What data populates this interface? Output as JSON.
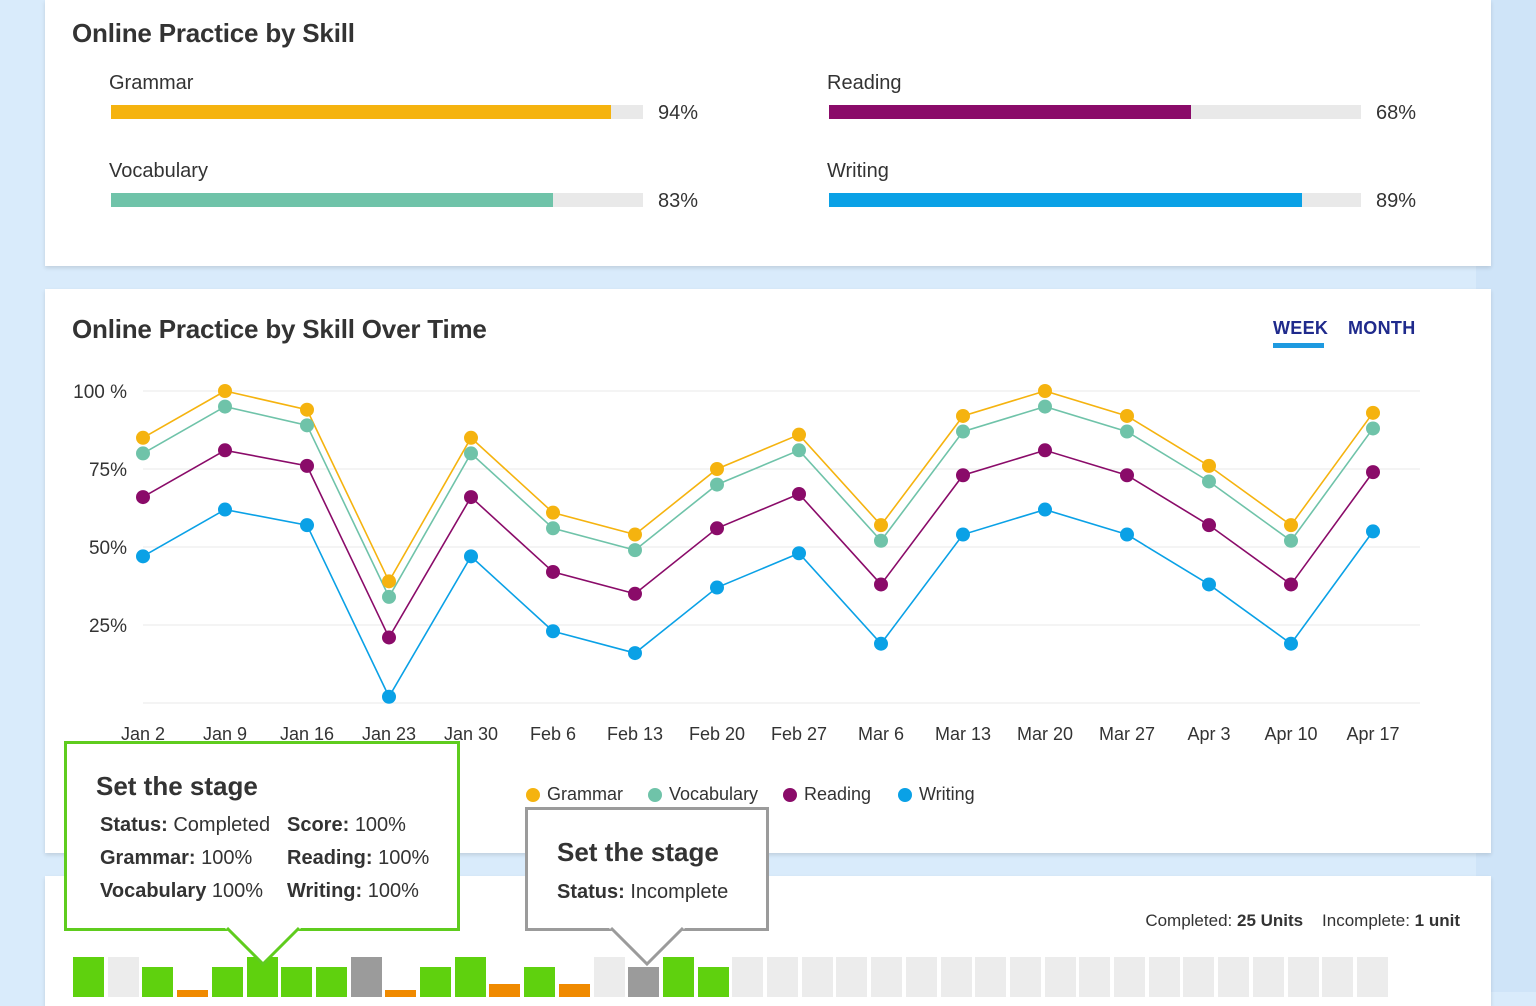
{
  "colors": {
    "grammar": "#f5b30f",
    "vocabulary": "#6fc3a9",
    "reading": "#8a0b69",
    "writing": "#0aa1e6",
    "complete": "#5fd10e",
    "incomplete": "#9b9b9b",
    "orange": "#f08a00",
    "empty": "#ececec"
  },
  "skills_card": {
    "title": "Online Practice by Skill",
    "skills": [
      {
        "key": "grammar",
        "label": "Grammar",
        "value": 94,
        "pct_text": "94%"
      },
      {
        "key": "reading",
        "label": "Reading",
        "value": 68,
        "pct_text": "68%"
      },
      {
        "key": "vocabulary",
        "label": "Vocabulary",
        "value": 83,
        "pct_text": "83%"
      },
      {
        "key": "writing",
        "label": "Writing",
        "value": 89,
        "pct_text": "89%"
      }
    ]
  },
  "time_card": {
    "title": "Online Practice by Skill Over Time",
    "tabs": [
      {
        "label": "WEEK",
        "active": true
      },
      {
        "label": "MONTH",
        "active": false
      }
    ]
  },
  "chart_data": {
    "type": "line",
    "categories": [
      "Jan 2",
      "Jan 9",
      "Jan 16",
      "Jan 23",
      "Jan 30",
      "Feb 6",
      "Feb 13",
      "Feb 20",
      "Feb 27",
      "Mar 6",
      "Mar 13",
      "Mar 20",
      "Mar 27",
      "Apr 3",
      "Apr 10",
      "Apr 17"
    ],
    "ytick_labels": [
      "100 %",
      "75%",
      "50%",
      "25%"
    ],
    "ylim": [
      0,
      100
    ],
    "series": [
      {
        "name": "Grammar",
        "key": "grammar",
        "values": [
          85,
          100,
          94,
          39,
          85,
          61,
          54,
          75,
          86,
          57,
          92,
          100,
          92,
          76,
          57,
          93
        ]
      },
      {
        "name": "Vocabulary",
        "key": "vocabulary",
        "values": [
          80,
          95,
          89,
          34,
          80,
          56,
          49,
          70,
          81,
          52,
          87,
          95,
          87,
          71,
          52,
          88
        ]
      },
      {
        "name": "Reading",
        "key": "reading",
        "values": [
          66,
          81,
          76,
          21,
          66,
          42,
          35,
          56,
          67,
          38,
          73,
          81,
          73,
          57,
          38,
          74
        ]
      },
      {
        "name": "Writing",
        "key": "writing",
        "values": [
          47,
          62,
          57,
          2,
          47,
          23,
          16,
          37,
          48,
          19,
          54,
          62,
          54,
          38,
          19,
          55
        ]
      }
    ],
    "legend": "bottom-center",
    "grid": true
  },
  "tooltip_completed": {
    "title": "Set the stage",
    "status_label": "Status:",
    "status_value": "Completed",
    "score_label": "Score:",
    "score_value": "100%",
    "grammar_label": "Grammar:",
    "grammar_value": "100%",
    "reading_label": "Reading:",
    "reading_value": "100%",
    "vocabulary_label": "Vocabulary",
    "vocabulary_value": "100%",
    "writing_label": "Writing:",
    "writing_value": "100%"
  },
  "tooltip_incomplete": {
    "title": "Set the stage",
    "status_label": "Status:",
    "status_value": "Incomplete"
  },
  "units_card": {
    "completed_label": "Completed:",
    "completed_value": "25 Units",
    "incomplete_label": "Incomplete:",
    "incomplete_value": "1 unit",
    "cells": [
      {
        "type": "complete",
        "level": 1.0
      },
      {
        "type": "empty",
        "level": 1.0
      },
      {
        "type": "complete",
        "level": 0.75
      },
      {
        "type": "orange",
        "level": 0.17
      },
      {
        "type": "complete",
        "level": 0.75
      },
      {
        "type": "complete",
        "level": 1.0
      },
      {
        "type": "complete",
        "level": 0.75
      },
      {
        "type": "complete",
        "level": 0.75
      },
      {
        "type": "incomplete",
        "level": 1.0
      },
      {
        "type": "orange",
        "level": 0.17
      },
      {
        "type": "complete",
        "level": 0.75
      },
      {
        "type": "complete",
        "level": 1.0
      },
      {
        "type": "orange",
        "level": 0.33
      },
      {
        "type": "complete",
        "level": 0.75
      },
      {
        "type": "orange",
        "level": 0.33
      },
      {
        "type": "empty",
        "level": 1.0
      },
      {
        "type": "incomplete",
        "level": 0.75
      },
      {
        "type": "complete",
        "level": 1.0
      },
      {
        "type": "complete",
        "level": 0.75
      },
      {
        "type": "empty",
        "level": 1.0
      },
      {
        "type": "empty",
        "level": 1.0
      },
      {
        "type": "empty",
        "level": 1.0
      },
      {
        "type": "empty",
        "level": 1.0
      },
      {
        "type": "empty",
        "level": 1.0
      },
      {
        "type": "empty",
        "level": 1.0
      },
      {
        "type": "empty",
        "level": 1.0
      },
      {
        "type": "empty",
        "level": 1.0
      },
      {
        "type": "empty",
        "level": 1.0
      },
      {
        "type": "empty",
        "level": 1.0
      },
      {
        "type": "empty",
        "level": 1.0
      },
      {
        "type": "empty",
        "level": 1.0
      },
      {
        "type": "empty",
        "level": 1.0
      },
      {
        "type": "empty",
        "level": 1.0
      },
      {
        "type": "empty",
        "level": 1.0
      },
      {
        "type": "empty",
        "level": 1.0
      },
      {
        "type": "empty",
        "level": 1.0
      },
      {
        "type": "empty",
        "level": 1.0
      },
      {
        "type": "empty",
        "level": 1.0
      }
    ]
  }
}
